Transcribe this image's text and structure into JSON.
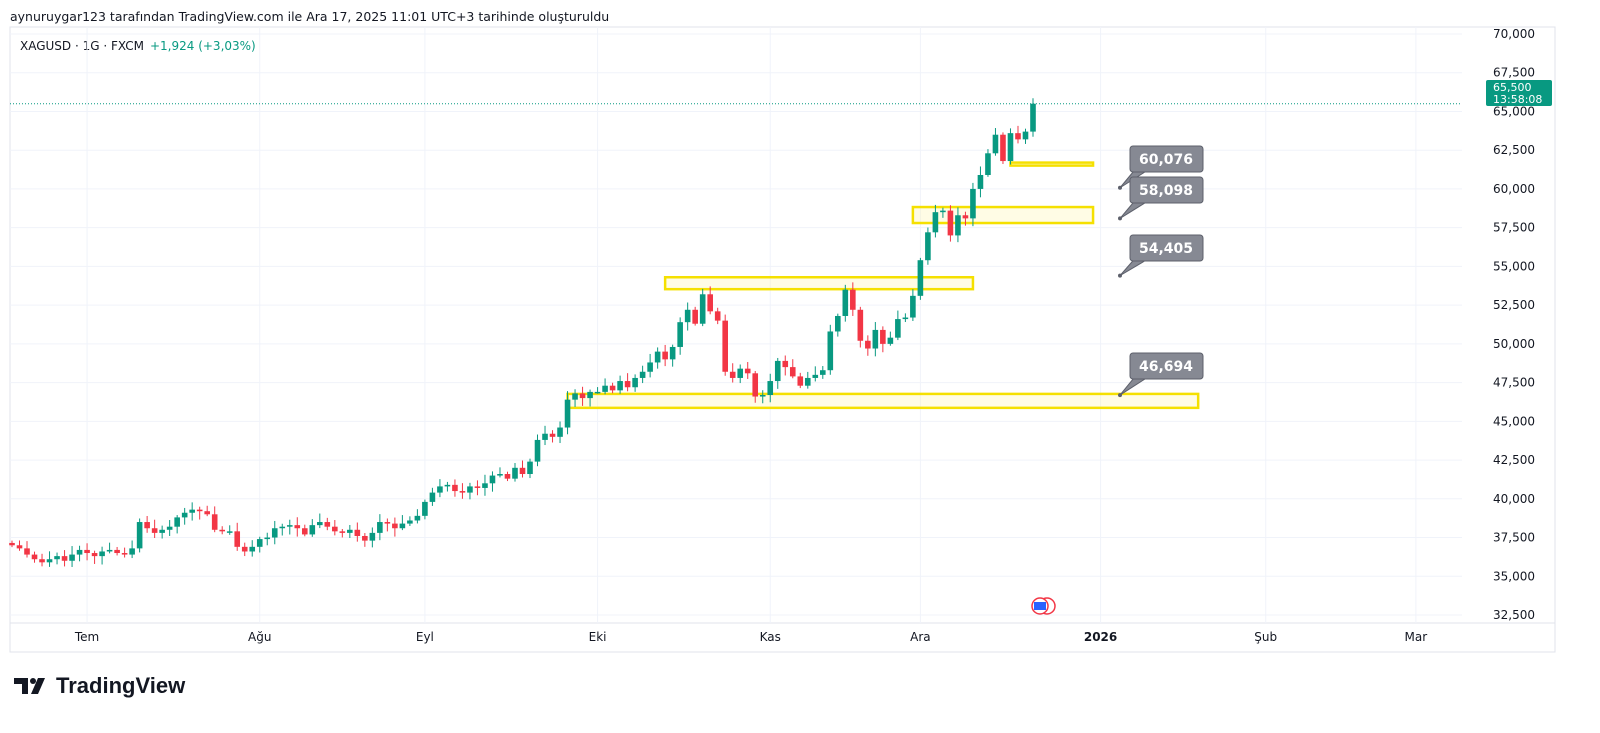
{
  "attribution": "aynuruygar123 tarafından TradingView.com ile Ara 17, 2025 11:01 UTC+3 tarihinde oluşturuldu",
  "legend": {
    "symbol": "XAGUSD · 1G · FXCM",
    "change": "+1,924 (+3,03%)"
  },
  "last_price": {
    "value": "65,500",
    "countdown": "13:58:08"
  },
  "brand": "TradingView",
  "colors": {
    "up": "#089981",
    "down": "#f23645",
    "zone": "#f5e000",
    "callout": "#868993"
  },
  "chart_data": {
    "type": "candlestick",
    "symbol": "XAGUSD",
    "ylim": [
      32500,
      70000
    ],
    "y_ticks": [
      "70,000",
      "67,500",
      "65,000",
      "62,500",
      "60,000",
      "57,500",
      "55,000",
      "52,500",
      "50,000",
      "47,500",
      "45,000",
      "42,500",
      "40,000",
      "37,500",
      "35,000",
      "32,500"
    ],
    "y_tick_values": [
      70000,
      67500,
      65000,
      62500,
      60000,
      57500,
      55000,
      52500,
      50000,
      47500,
      45000,
      42500,
      40000,
      37500,
      35000,
      32500
    ],
    "x_ticks": [
      "Tem",
      "Ağu",
      "Eyl",
      "Eki",
      "Kas",
      "Ara",
      "2026",
      "Şub",
      "Mar"
    ],
    "x_tick_bar_index": [
      10,
      33,
      55,
      78,
      101,
      121,
      145,
      167,
      187
    ],
    "closes": [
      37.0,
      36.8,
      36.4,
      36.1,
      35.9,
      36.1,
      36.3,
      36.0,
      36.4,
      36.7,
      36.5,
      36.3,
      36.6,
      36.7,
      36.5,
      36.4,
      36.8,
      38.5,
      38.1,
      37.8,
      38.0,
      38.2,
      38.8,
      39.1,
      39.3,
      39.2,
      39.0,
      38.0,
      37.9,
      37.9,
      36.9,
      36.6,
      36.9,
      37.4,
      37.5,
      38.1,
      38.2,
      38.3,
      38.1,
      37.7,
      38.3,
      38.5,
      38.2,
      37.9,
      37.8,
      38.0,
      37.6,
      37.3,
      37.8,
      38.5,
      38.4,
      38.1,
      38.4,
      38.6,
      38.9,
      39.8,
      40.4,
      40.8,
      40.9,
      40.5,
      40.4,
      40.8,
      40.7,
      41.0,
      41.5,
      41.6,
      41.3,
      42.0,
      41.6,
      42.4,
      43.8,
      44.2,
      44.0,
      44.6,
      46.4,
      46.8,
      46.5,
      46.9,
      46.9,
      47.3,
      47.0,
      47.6,
      47.2,
      47.8,
      48.2,
      48.8,
      49.5,
      49.0,
      49.8,
      51.4,
      52.2,
      51.3,
      53.2,
      52.1,
      51.5,
      48.2,
      47.8,
      48.4,
      48.1,
      46.6,
      46.7,
      47.6,
      48.9,
      48.5,
      47.9,
      47.3,
      47.8,
      48.0,
      48.3,
      50.8,
      51.8,
      53.5,
      52.2,
      50.2,
      49.7,
      50.9,
      50.0,
      50.4,
      51.6,
      51.7,
      53.1,
      55.4,
      57.2,
      58.5,
      58.6,
      57.0,
      58.3,
      58.1,
      60.0,
      60.9,
      62.3,
      63.5,
      61.8,
      63.6,
      63.2,
      63.7,
      65.5
    ],
    "zones": [
      {
        "from_bar": 133,
        "to_bar": 144,
        "top": 61700,
        "bottom": 61550
      },
      {
        "from_bar": 120,
        "to_bar": 144,
        "top": 58830,
        "bottom": 57800
      },
      {
        "from_bar": 87,
        "to_bar": 128,
        "top": 54300,
        "bottom": 53530
      },
      {
        "from_bar": 74,
        "to_bar": 158,
        "top": 46770,
        "bottom": 45870
      }
    ],
    "callouts": [
      {
        "label": "60,076",
        "price": 60076
      },
      {
        "label": "58,098",
        "price": 58098
      },
      {
        "label": "54,405",
        "price": 54405
      },
      {
        "label": "46,694",
        "price": 46694
      }
    ],
    "last_price_value": 65500
  }
}
